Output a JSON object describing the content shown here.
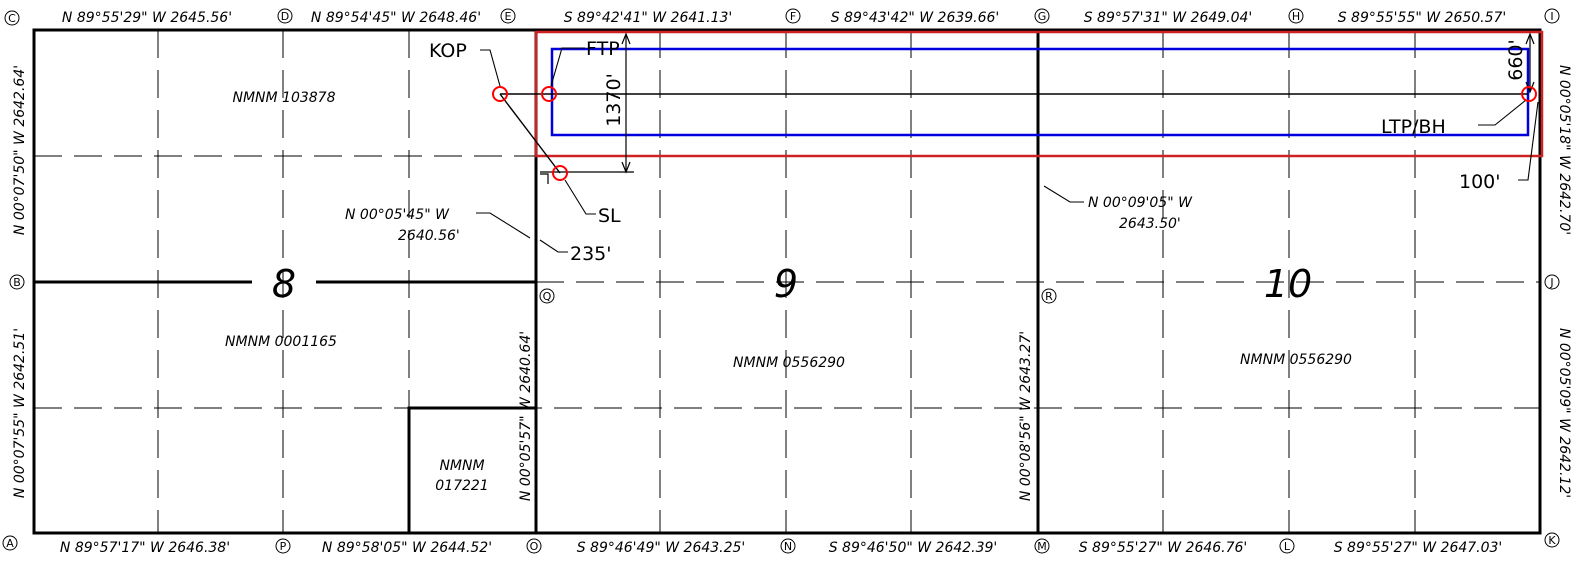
{
  "top_bearings": [
    "N 89°55'29\" W 2645.56'",
    "N 89°54'45\" W 2648.46'",
    "S 89°42'41\" W 2641.13'",
    "S 89°43'42\" W 2639.66'",
    "S 89°57'31\" W 2649.04'",
    "S 89°55'55\" W 2650.57'"
  ],
  "bottom_bearings": [
    "N 89°57'17\" W 2646.38'",
    "N 89°58'05\" W 2644.52'",
    "S 89°46'49\" W 2643.25'",
    "S 89°46'50\" W 2642.39'",
    "S 89°55'27\" W 2646.76'",
    "S 89°55'27\" W 2647.03'"
  ],
  "left_bearings": {
    "upper": "N 00°07'50\" W 2642.64'",
    "lower": "N 00°07'55\" W 2642.51'"
  },
  "right_bearings": {
    "upper": "N 00°05'18\" W 2642.70'",
    "lower": "N 00°05'09\" W 2642.12'"
  },
  "mid_bearings": {
    "q_lower": "N 00°05'57\" W 2640.64'",
    "r_lower": "N 00°08'56\" W 2643.27'",
    "q_upper_line1": "N 00°05'45\" W",
    "q_upper_line2": "2640.56'",
    "r_upper_line1": "N 00°09'05\" W",
    "r_upper_line2": "2643.50'"
  },
  "corners": {
    "A": "A",
    "B": "B",
    "C": "C",
    "D": "D",
    "E": "E",
    "F": "F",
    "G": "G",
    "H": "H",
    "I": "I",
    "J": "J",
    "K": "K",
    "L": "L",
    "M": "M",
    "N": "N",
    "O": "O",
    "P": "P",
    "Q": "Q",
    "R": "R"
  },
  "sections": {
    "s8": "8",
    "s9": "9",
    "s10": "10"
  },
  "leases": {
    "nw8": "NMNM 103878",
    "sw8": "NMNM 0001165",
    "small_line1": "NMNM",
    "small_line2": "017221",
    "s9": "NMNM 0556290",
    "s10": "NMNM 0556290"
  },
  "well_labels": {
    "kop": "KOP",
    "ftp": "FTP",
    "sl": "SL",
    "ltp": "LTP/BH",
    "d1370": "1370'",
    "d660": "660'",
    "d235": "235'",
    "d100": "100'"
  },
  "colors": {
    "line": "#000000",
    "red": "#cc2222",
    "blue": "#0000dd",
    "marker": "#ff0000"
  }
}
